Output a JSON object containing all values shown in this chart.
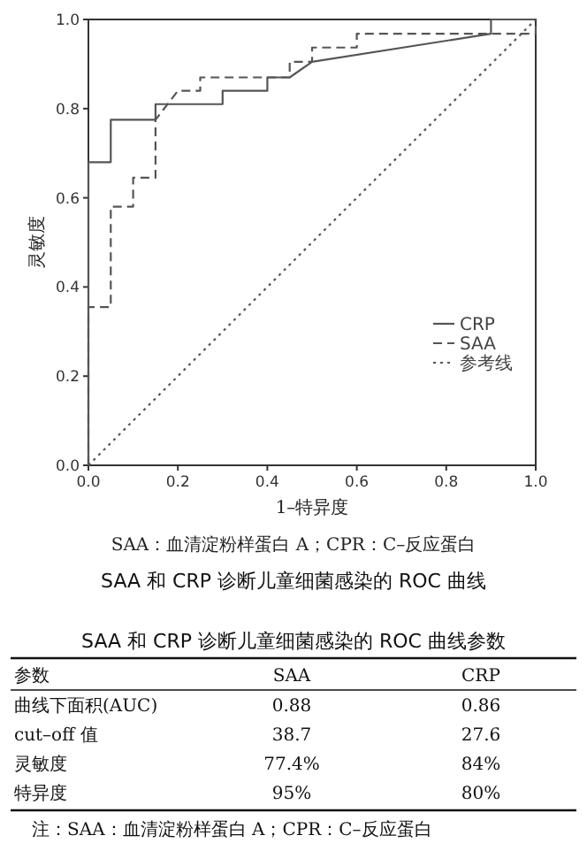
{
  "chart_data": [
    {
      "type": "line",
      "title": "SAA 和 CRP 诊断儿童细菌感染的 ROC 曲线",
      "xlabel": "1–特异度",
      "ylabel": "灵敏度",
      "annotations": [
        "SAA：血清淀粉样蛋白 A；CPR：C–反应蛋白"
      ],
      "xlim": [
        0,
        1
      ],
      "ylim": [
        0,
        1
      ],
      "xticks": [
        {
          "value": 0,
          "label": "0.0"
        },
        0.2,
        0.4,
        0.6,
        0.8,
        {
          "value": 1,
          "label": "1.0"
        }
      ],
      "yticks": [
        {
          "value": 0,
          "label": "0.0"
        },
        0.2,
        0.4,
        0.6,
        0.8,
        {
          "value": 1,
          "label": "1.0"
        }
      ],
      "legend": "right",
      "series": [
        {
          "name": "CRP",
          "color": "#555555",
          "line_style": "solid",
          "x": [
            0,
            0,
            0.05,
            0.05,
            0.15,
            0.15,
            0.3,
            0.3,
            0.4,
            0.4,
            0.45,
            0.5,
            0.9,
            0.9,
            1
          ],
          "values": [
            0,
            0.68,
            0.68,
            0.775,
            0.775,
            0.81,
            0.81,
            0.84,
            0.84,
            0.87,
            0.87,
            0.905,
            0.968,
            1,
            1
          ]
        },
        {
          "name": "SAA",
          "color": "#555555",
          "line_style": "dashed",
          "x": [
            0,
            0,
            0.05,
            0.05,
            0.1,
            0.1,
            0.15,
            0.15,
            0.2,
            0.25,
            0.25,
            0.45,
            0.45,
            0.5,
            0.5,
            0.6,
            0.6,
            1,
            1
          ],
          "values": [
            0,
            0.355,
            0.355,
            0.58,
            0.58,
            0.645,
            0.645,
            0.775,
            0.84,
            0.84,
            0.87,
            0.87,
            0.905,
            0.905,
            0.937,
            0.937,
            0.968,
            0.968,
            1
          ]
        },
        {
          "name": "参考线",
          "color": "#555555",
          "line_style": "dotted",
          "x": [
            0,
            1
          ],
          "values": [
            0,
            1
          ]
        }
      ]
    },
    {
      "type": "other",
      "title": "SAA 和 CRP 诊断儿童细菌感染的 ROC 曲线参数",
      "categories": [
        "参数",
        "SAA",
        "CRP"
      ],
      "y_categories": [
        "曲线下面积(AUC)",
        "cut–off 值",
        "灵敏度",
        "特异度"
      ],
      "cell_labels": [
        [
          "0.88",
          "0.86"
        ],
        [
          "38.7",
          "27.6"
        ],
        [
          "77.4%",
          "84%"
        ],
        [
          "95%",
          "80%"
        ]
      ],
      "annotations": [
        "注：SAA：血清淀粉样蛋白 A；CPR：C–反应蛋白"
      ]
    }
  ]
}
